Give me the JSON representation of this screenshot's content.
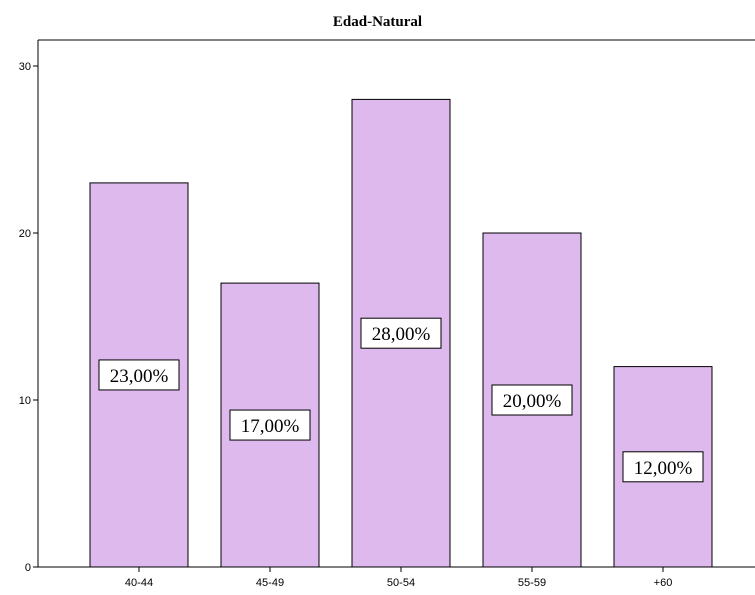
{
  "chart_data": {
    "type": "bar",
    "title": "Edad-Natural",
    "xlabel": "",
    "ylabel": "",
    "categories": [
      "40-44",
      "45-49",
      "50-54",
      "55-59",
      "+60"
    ],
    "values": [
      23,
      17,
      28,
      20,
      12
    ],
    "data_labels": [
      "23,00%",
      "17,00%",
      "28,00%",
      "20,00%",
      "12,00%"
    ],
    "ylim": [
      0,
      32
    ],
    "yticks": [
      "0",
      "10",
      "20",
      "30"
    ],
    "grid": false,
    "colors": {
      "bar_fill": "#ddb9ee",
      "bar_stroke": "#000000",
      "label_box": "#ffffff"
    }
  }
}
